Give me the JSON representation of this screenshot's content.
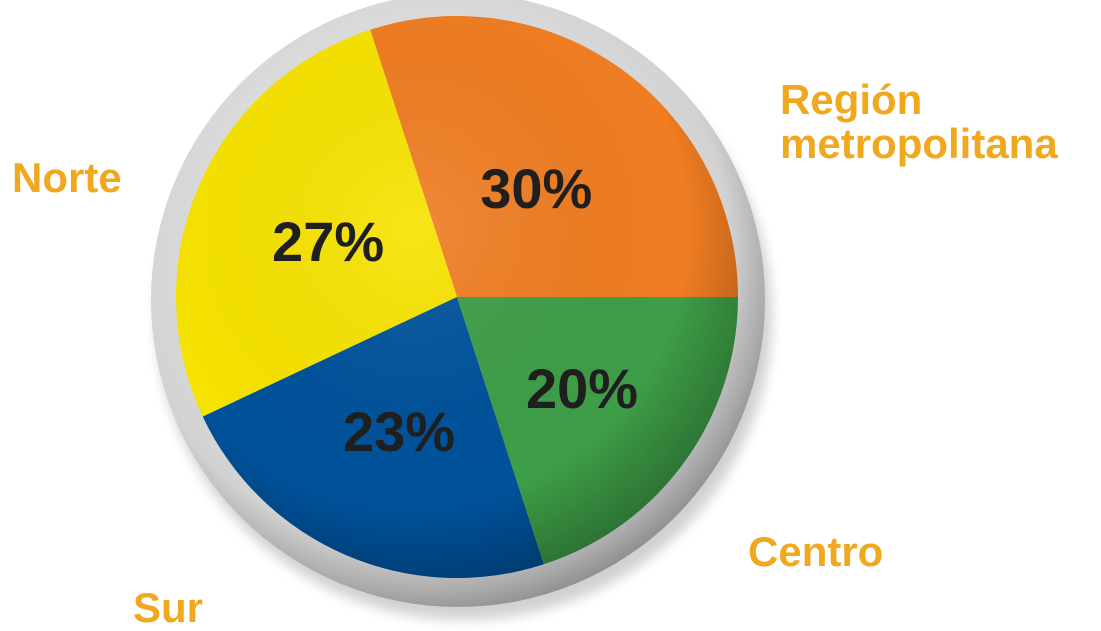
{
  "chart_data": {
    "type": "pie",
    "slices": [
      {
        "label": "Región metropolitana",
        "label_lines": [
          "Región",
          "metropolitana"
        ],
        "value": 30,
        "value_label": "30%",
        "color": "#F07D22"
      },
      {
        "label": "Centro",
        "label_lines": [
          "Centro"
        ],
        "value": 27,
        "value_label": "27%",
        "color": "#F7E300"
      },
      {
        "label": "Sur",
        "label_lines": [
          "Sur"
        ],
        "value": 23,
        "value_label": "23%",
        "color": "#00529B"
      },
      {
        "label": "Norte",
        "label_lines": [
          "Norte"
        ],
        "value": 20,
        "value_label": "20%",
        "color": "#3E9E47"
      }
    ],
    "start_direction": "east",
    "direction": "counterclockwise",
    "category_label_color": "#F0A91E",
    "value_label_color": "#1f1f1f"
  }
}
